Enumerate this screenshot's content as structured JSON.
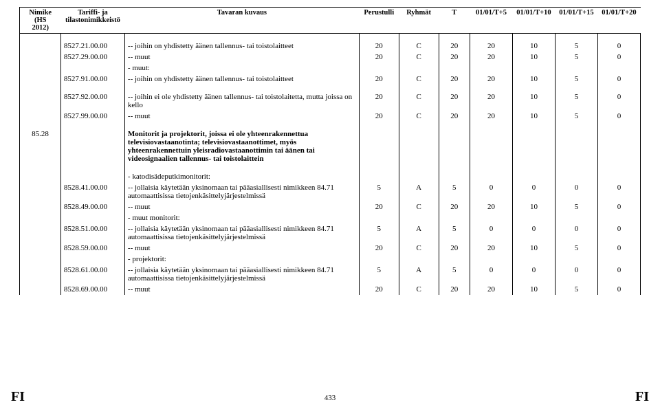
{
  "header": {
    "hs": "Nimike\n(HS\n2012)",
    "tariff": "Tariffi- ja\ntilastonimikkeistö",
    "desc": "Tavaran kuvaus",
    "base": "Perustulli",
    "group": "Ryhmät",
    "t": "T",
    "t5": "01/01/T+5",
    "t10": "01/01/T+10",
    "t15": "01/01/T+15",
    "t20": "01/01/T+20"
  },
  "rows": [
    {
      "k": "r",
      "code": "8527.21.00.00",
      "desc": "-- joihin on yhdistetty äänen tallennus- tai toistolaitteet",
      "v": [
        "20",
        "C",
        "20",
        "20",
        "10",
        "5",
        "0"
      ]
    },
    {
      "k": "r",
      "code": "8527.29.00.00",
      "desc": "-- muut",
      "v": [
        "20",
        "C",
        "20",
        "20",
        "10",
        "5",
        "0"
      ]
    },
    {
      "k": "t",
      "desc": "- muut:"
    },
    {
      "k": "r",
      "code": "8527.91.00.00",
      "desc": "-- joihin on yhdistetty äänen tallennus- tai toistolaitteet",
      "v": [
        "20",
        "C",
        "20",
        "20",
        "10",
        "5",
        "0"
      ]
    },
    {
      "k": "sp"
    },
    {
      "k": "r",
      "code": "8527.92.00.00",
      "desc": "-- joihin ei ole yhdistetty äänen tallennus- tai toistolaitetta, mutta joissa on kello",
      "v": [
        "20",
        "C",
        "20",
        "20",
        "10",
        "5",
        "0"
      ]
    },
    {
      "k": "r",
      "code": "8527.99.00.00",
      "desc": "-- muut",
      "v": [
        "20",
        "C",
        "20",
        "20",
        "10",
        "5",
        "0"
      ]
    },
    {
      "k": "sp"
    },
    {
      "k": "h",
      "hs": "85.28",
      "desc": "Monitorit ja projektorit, joissa ei ole yhteenrakennettua televisiovastaanotinta; televisiovastaanottimet, myös yhteenrakennettuin yleisradiovastaanottimin tai äänen tai videosignaalien tallennus- tai toistolaittein"
    },
    {
      "k": "sp"
    },
    {
      "k": "t",
      "desc": "- katodisädeputkimonitorit:"
    },
    {
      "k": "r",
      "code": "8528.41.00.00",
      "desc": "-- jollaisia käytetään yksinomaan tai pääasiallisesti nimikkeen 84.71 automaattisissa tietojenkäsittelyjärjestelmissä",
      "v": [
        "5",
        "A",
        "5",
        "0",
        "0",
        "0",
        "0"
      ]
    },
    {
      "k": "r",
      "code": "8528.49.00.00",
      "desc": "-- muut",
      "v": [
        "20",
        "C",
        "20",
        "20",
        "10",
        "5",
        "0"
      ]
    },
    {
      "k": "t",
      "desc": "- muut monitorit:"
    },
    {
      "k": "r",
      "code": "8528.51.00.00",
      "desc": "-- jollaisia käytetään yksinomaan tai pääasiallisesti nimikkeen 84.71 automaattisissa tietojenkäsittelyjärjestelmissä",
      "v": [
        "5",
        "A",
        "5",
        "0",
        "0",
        "0",
        "0"
      ]
    },
    {
      "k": "r",
      "code": "8528.59.00.00",
      "desc": "-- muut",
      "v": [
        "20",
        "C",
        "20",
        "20",
        "10",
        "5",
        "0"
      ]
    },
    {
      "k": "t",
      "desc": "- projektorit:"
    },
    {
      "k": "r",
      "code": "8528.61.00.00",
      "desc": "-- jollaisia käytetään yksinomaan tai pääasiallisesti nimikkeen 84.71 automaattisissa tietojenkäsittelyjärjestelmissä",
      "v": [
        "5",
        "A",
        "5",
        "0",
        "0",
        "0",
        "0"
      ]
    },
    {
      "k": "r",
      "code": "8528.69.00.00",
      "desc": "-- muut",
      "v": [
        "20",
        "C",
        "20",
        "20",
        "10",
        "5",
        "0"
      ]
    }
  ],
  "footer": {
    "left": "FI",
    "page": "433",
    "right": "FI"
  }
}
